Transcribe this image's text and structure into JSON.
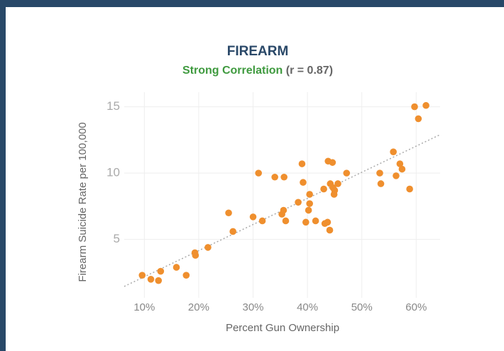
{
  "chart_data": {
    "type": "scatter",
    "title": "FIREARM",
    "subtitle": "Strong Correlation",
    "subtitle_note": "(r = 0.87)",
    "x_label": "Percent Gun Ownership",
    "y_label": "Firearm Suicide Rate per 100,000",
    "x": [
      9.6,
      11.2,
      12.6,
      13.0,
      15.9,
      17.7,
      19.3,
      19.4,
      21.7,
      25.5,
      26.3,
      30.0,
      31.0,
      31.7,
      34.0,
      35.3,
      35.6,
      35.7,
      36.0,
      38.3,
      39.0,
      39.2,
      39.7,
      40.2,
      40.4,
      40.4,
      41.5,
      43.0,
      43.2,
      43.7,
      43.8,
      44.1,
      44.2,
      44.6,
      44.7,
      44.9,
      45.0,
      45.6,
      47.2,
      53.3,
      53.5,
      55.8,
      56.3,
      57.0,
      57.4,
      58.8,
      59.7,
      60.4,
      61.8
    ],
    "values": [
      2.3,
      2.0,
      1.9,
      2.6,
      2.9,
      2.3,
      4.0,
      3.8,
      4.4,
      7.0,
      5.6,
      6.7,
      10.0,
      6.4,
      9.7,
      6.9,
      7.2,
      9.7,
      6.4,
      7.8,
      10.7,
      9.3,
      6.3,
      7.2,
      8.4,
      7.7,
      6.4,
      8.8,
      6.2,
      6.3,
      10.9,
      5.7,
      9.2,
      10.8,
      8.9,
      8.4,
      8.7,
      9.2,
      10.0,
      10.0,
      9.2,
      11.6,
      9.8,
      10.7,
      10.3,
      8.8,
      15.0,
      14.1,
      15.1
    ],
    "color": "#ef8f2e",
    "trend_line": {
      "x": [
        6.3,
        64.4
      ],
      "values": [
        1.46,
        12.9
      ],
      "color": "#aaaaaa"
    },
    "xlim": [
      6.3,
      64.4
    ],
    "ylim": [
      0.6,
      16.1
    ],
    "xticks": [
      {
        "value": 10,
        "label": "10%"
      },
      {
        "value": 20,
        "label": "20%"
      },
      {
        "value": 30,
        "label": "30%"
      },
      {
        "value": 40,
        "label": "40%"
      },
      {
        "value": 50,
        "label": "50%"
      },
      {
        "value": 60,
        "label": "60%"
      }
    ],
    "yticks": [
      5,
      10,
      15
    ],
    "grid": true
  }
}
